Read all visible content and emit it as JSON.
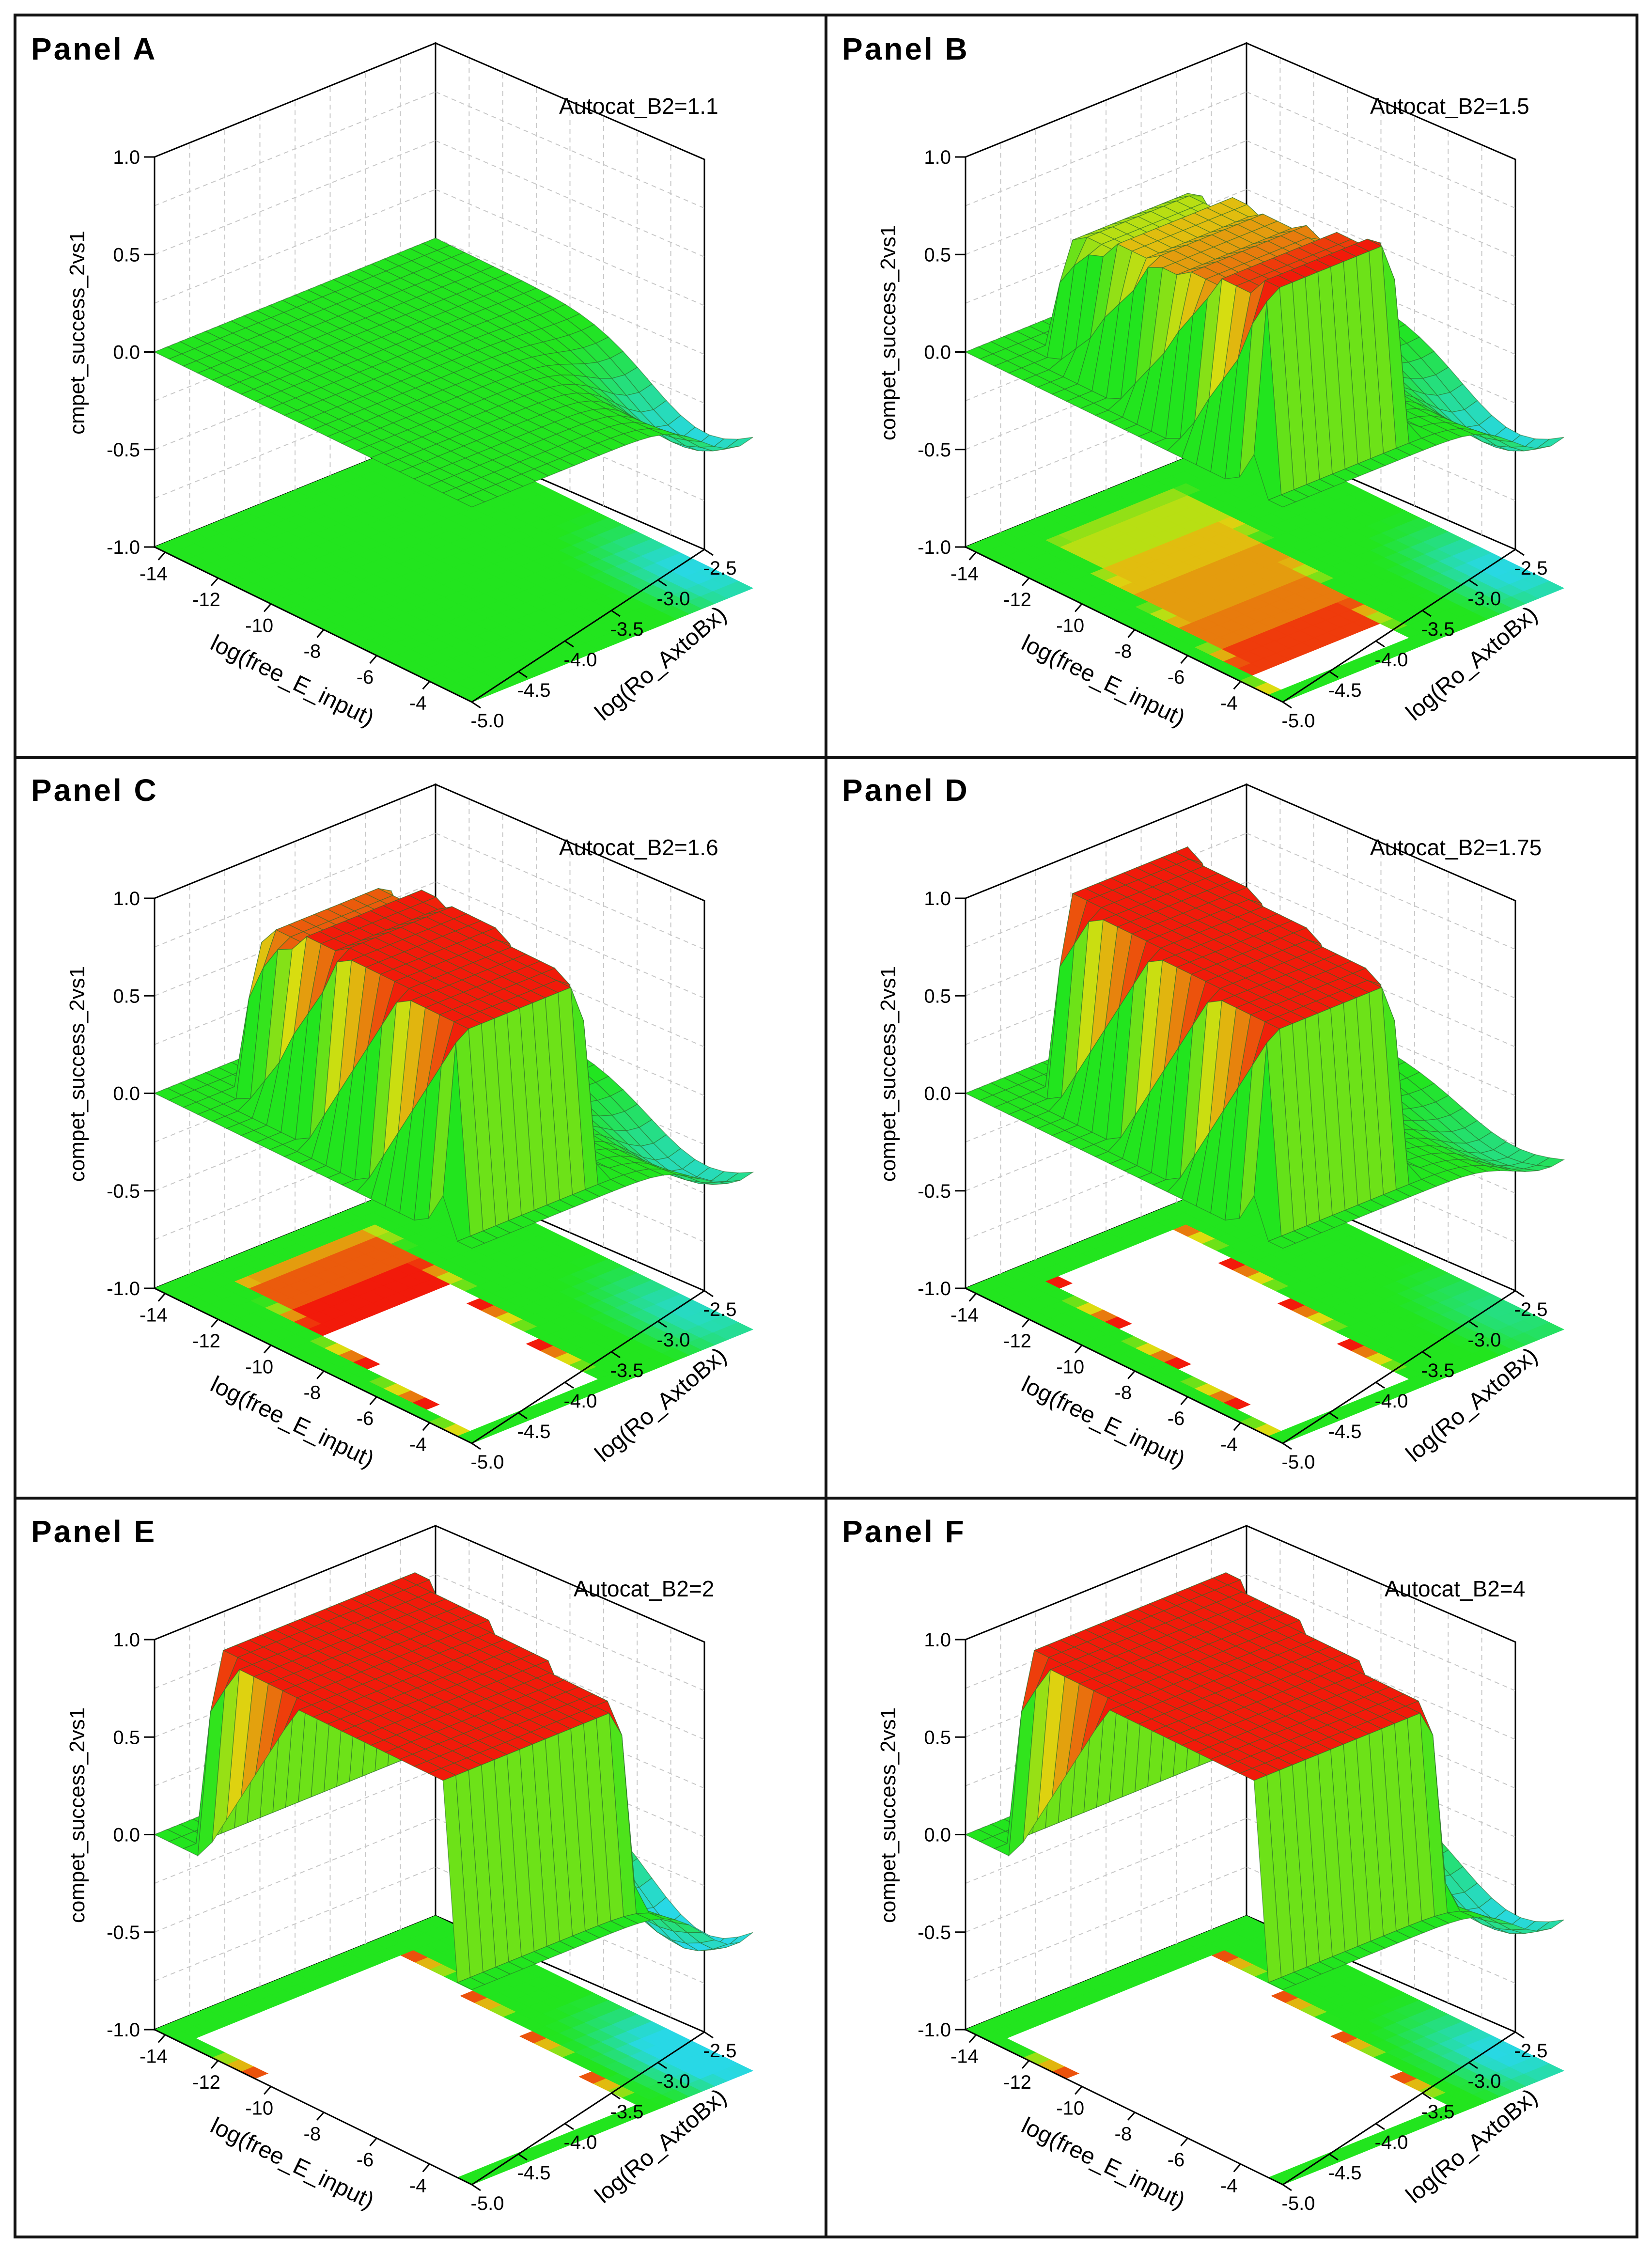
{
  "colors": {
    "surface_low": "#22e51e",
    "surface_mid": "#dddd10",
    "surface_high": "#f21a0a",
    "surface_dip": "#28d8e6",
    "mesh": "#2a6a2a",
    "axis": "#000000",
    "grid": "#c8c8c8"
  },
  "chart_data": [
    {
      "type": "surface3d",
      "panel_label": "Panel  A",
      "parameter": "Autocat_B2=1.1",
      "zlabel": "cmpet_success_2vs1",
      "xlabel": "log(free_E_input)",
      "ylabel": "log(Ro_AxtoBx)",
      "zticks": [
        "-1.0",
        "-0.5",
        "0.0",
        "0.5",
        "1.0"
      ],
      "xticks": [
        "-14",
        "-12",
        "-10",
        "-8",
        "-6",
        "-4"
      ],
      "yticks": [
        "-5.0",
        "-4.5",
        "-4.0",
        "-3.5",
        "-3.0",
        "-2.5"
      ],
      "zlim": [
        -1.0,
        1.0
      ],
      "xlim": [
        -14,
        -3
      ],
      "ylim": [
        -5.0,
        -2.5
      ],
      "plateau": 0.0,
      "dip": -0.35,
      "high_region": null,
      "contour_projection": "uniform green, cyan near log(Ro_AxtoBx)=-2.5"
    },
    {
      "type": "surface3d",
      "panel_label": "Panel  B",
      "parameter": "Autocat_B2=1.5",
      "zlabel": "compet_success_2vs1",
      "xlabel": "log(free_E_input)",
      "ylabel": "log(Ro_AxtoBx)",
      "zticks": [
        "-1.0",
        "-0.5",
        "0.0",
        "0.5",
        "1.0"
      ],
      "xticks": [
        "-14",
        "-12",
        "-10",
        "-8",
        "-6",
        "-4"
      ],
      "yticks": [
        "-5.0",
        "-4.5",
        "-4.0",
        "-3.5",
        "-3.0",
        "-2.5"
      ],
      "zlim": [
        -1.0,
        1.0
      ],
      "xlim": [
        -14,
        -3
      ],
      "ylim": [
        -5.0,
        -2.5
      ],
      "plateau": 0.0,
      "dip": -0.35,
      "high_region": {
        "peak": 1.0,
        "ridge": [
          0.55,
          0.6,
          0.7,
          0.75,
          0.8,
          0.9,
          1.0
        ]
      },
      "contour_projection": "red band along diagonal with white patches"
    },
    {
      "type": "surface3d",
      "panel_label": "Panel  C",
      "parameter": "Autocat_B2=1.6",
      "zlabel": "compet_success_2vs1",
      "xlabel": "log(free_E_input)",
      "ylabel": "log(Ro_AxtoBx)",
      "zticks": [
        "-1.0",
        "-0.5",
        "0.0",
        "0.5",
        "1.0"
      ],
      "xticks": [
        "-14",
        "-12",
        "-10",
        "-8",
        "-6",
        "-4"
      ],
      "yticks": [
        "-5.0",
        "-4.5",
        "-4.0",
        "-3.5",
        "-3.0",
        "-2.5"
      ],
      "zlim": [
        -1.0,
        1.0
      ],
      "xlim": [
        -14,
        -3
      ],
      "ylim": [
        -5.0,
        -2.5
      ],
      "plateau": 0.0,
      "dip": -0.3,
      "high_region": {
        "peak": 1.0,
        "ridge": [
          0.75,
          0.85,
          0.95,
          1.0,
          1.0,
          1.0,
          1.0
        ]
      },
      "contour_projection": "red band along diagonal with white patches"
    },
    {
      "type": "surface3d",
      "panel_label": "Panel  D",
      "parameter": "Autocat_B2=1.75",
      "zlabel": "compet_success_2vs1",
      "xlabel": "log(free_E_input)",
      "ylabel": "log(Ro_AxtoBx)",
      "zticks": [
        "-1.0",
        "-0.5",
        "0.0",
        "0.5",
        "1.0"
      ],
      "xticks": [
        "-14",
        "-12",
        "-10",
        "-8",
        "-6",
        "-4"
      ],
      "yticks": [
        "-5.0",
        "-4.5",
        "-4.0",
        "-3.5",
        "-3.0",
        "-2.5"
      ],
      "zlim": [
        -1.0,
        1.0
      ],
      "xlim": [
        -14,
        -3
      ],
      "ylim": [
        -5.0,
        -2.5
      ],
      "plateau": 0.0,
      "dip": -0.2,
      "high_region": {
        "peak": 1.0,
        "ridge": [
          1.0,
          1.0,
          1.0,
          1.0,
          1.0,
          1.0,
          1.0
        ]
      },
      "contour_projection": "red band along diagonal with white patches"
    },
    {
      "type": "surface3d",
      "panel_label": "Panel  E",
      "parameter": "Autocat_B2=2",
      "zlabel": "compet_success_2vs1",
      "xlabel": "log(free_E_input)",
      "ylabel": "log(Ro_AxtoBx)",
      "zticks": [
        "-1.0",
        "-0.5",
        "0.0",
        "0.5",
        "1.0"
      ],
      "xticks": [
        "-14",
        "-12",
        "-10",
        "-8",
        "-6",
        "-4"
      ],
      "yticks": [
        "-5.0",
        "-4.5",
        "-4.0",
        "-3.5",
        "-3.0",
        "-2.5"
      ],
      "zlim": [
        -1.0,
        1.0
      ],
      "xlim": [
        -14,
        -3
      ],
      "ylim": [
        -5.0,
        -2.5
      ],
      "plateau": 0.0,
      "dip": -0.45,
      "high_region": {
        "peak": 1.0,
        "ridge": [
          1.0,
          1.0,
          1.0,
          1.0,
          1.0,
          1.0,
          1.0
        ]
      },
      "contour_projection": "wide red band with large white region"
    },
    {
      "type": "surface3d",
      "panel_label": "Panel  F",
      "parameter": "Autocat_B2=4",
      "zlabel": "compet_success_2vs1",
      "xlabel": "log(free_E_input)",
      "ylabel": "log(Ro_AxtoBx)",
      "zticks": [
        "-1.0",
        "-0.5",
        "0.0",
        "0.5",
        "1.0"
      ],
      "xticks": [
        "-14",
        "-12",
        "-10",
        "-8",
        "-6",
        "-4"
      ],
      "yticks": [
        "-5.0",
        "-4.5",
        "-4.0",
        "-3.5",
        "-3.0",
        "-2.5"
      ],
      "zlim": [
        -1.0,
        1.0
      ],
      "xlim": [
        -14,
        -3
      ],
      "ylim": [
        -5.0,
        -2.5
      ],
      "plateau": 0.0,
      "dip": -0.35,
      "high_region": {
        "peak": 1.0,
        "ridge": [
          1.0,
          1.0,
          1.0,
          1.0,
          1.0,
          1.0,
          1.0
        ]
      },
      "contour_projection": "red region with large white area, striped edge near -2.5"
    }
  ]
}
